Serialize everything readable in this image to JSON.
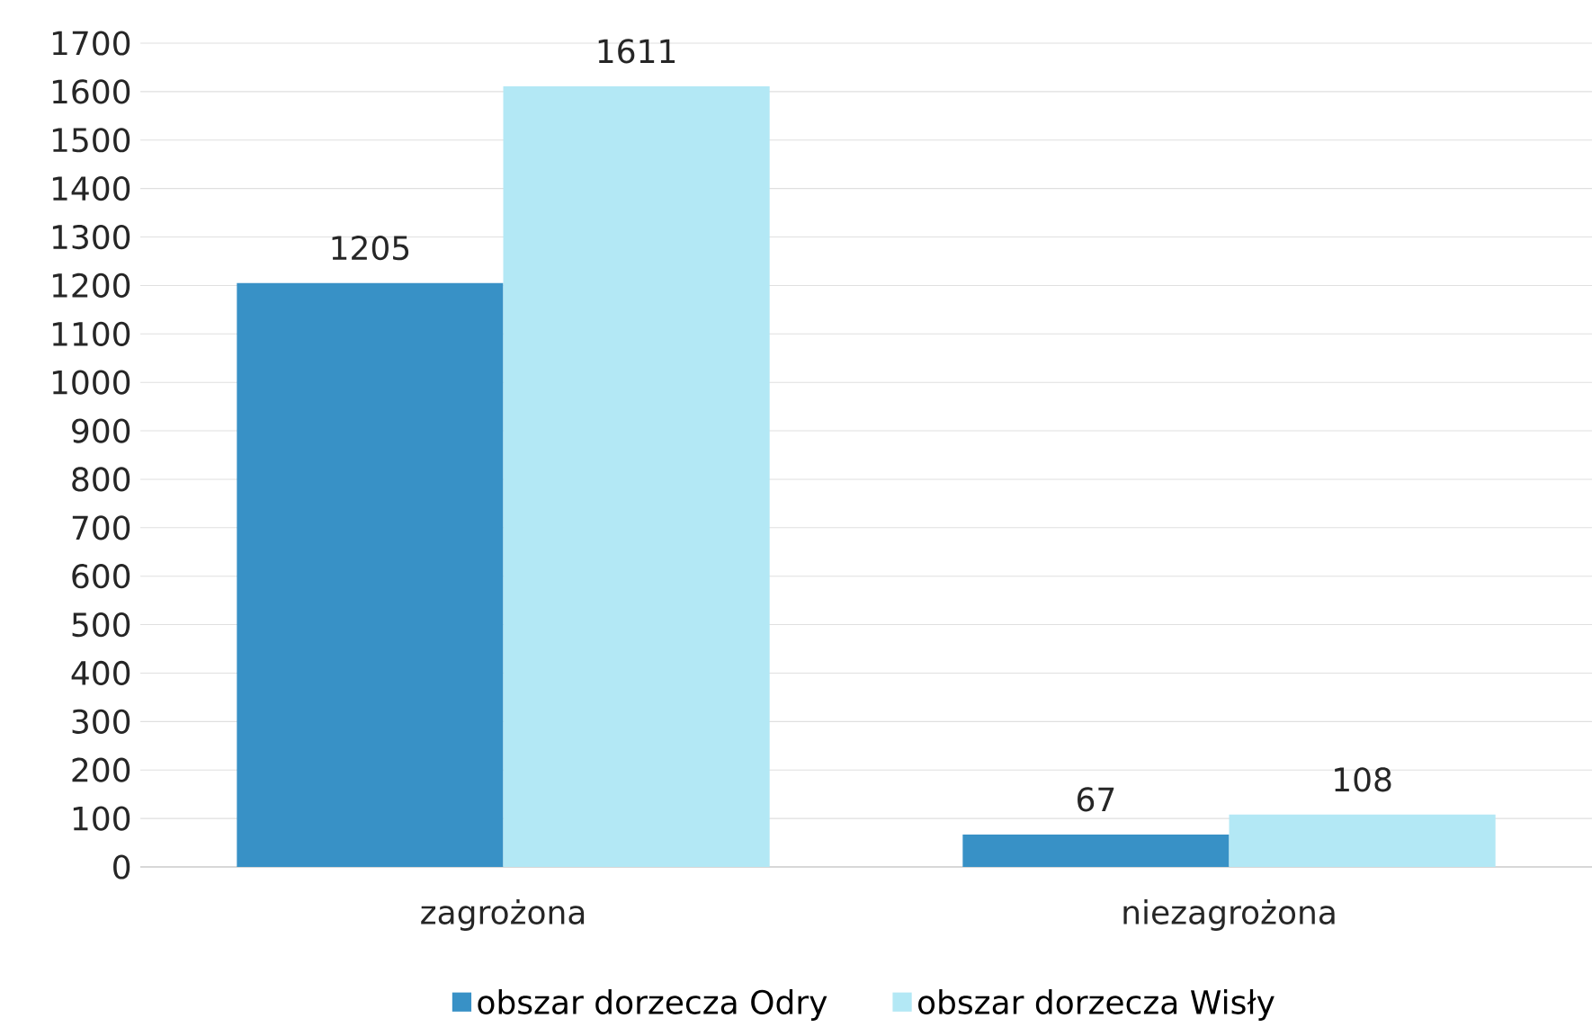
{
  "chart_data": {
    "type": "bar",
    "categories": [
      "zagrożona",
      "niezagrożona"
    ],
    "series": [
      {
        "name": "obszar dorzecza Odry",
        "color": "#3891c6",
        "values": [
          1205,
          67
        ]
      },
      {
        "name": "obszar dorzecza Wisły",
        "color": "#b3e8f5",
        "values": [
          1611,
          108
        ]
      }
    ],
    "ylim": [
      0,
      1700
    ],
    "yticks": [
      0,
      100,
      200,
      300,
      400,
      500,
      600,
      700,
      800,
      900,
      1000,
      1100,
      1200,
      1300,
      1400,
      1500,
      1600,
      1700
    ],
    "grid": "y",
    "legend": "bottom",
    "data_labels": true
  }
}
